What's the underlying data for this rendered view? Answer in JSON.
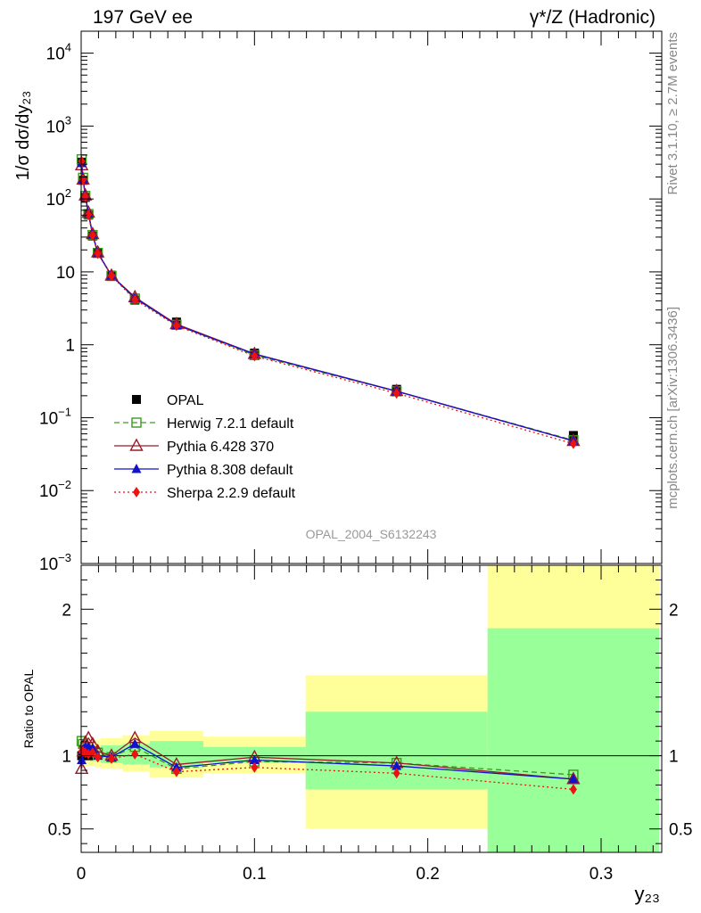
{
  "header": {
    "left": "197 GeV ee",
    "right": "γ*/Z (Hadronic)"
  },
  "side_labels": {
    "rivet": "Rivet 3.1.10, ≥ 2.7M events",
    "source": "mcplots.cern.ch [arXiv:1306.3436]"
  },
  "watermark": "OPAL_2004_S6132243",
  "colors": {
    "opal": "#000000",
    "herwig": "#3a9a1e",
    "pythia6": "#9b1b2a",
    "pythia8": "#1212cc",
    "sherpa": "#ee1111",
    "band_inner": "#99ff99",
    "band_outer": "#ffff99"
  },
  "chart_data": [
    {
      "type": "scatter",
      "panel": "main",
      "ylabel": "1/σ dσ/dy₂₃",
      "ylog": true,
      "xlim": [
        0,
        0.335
      ],
      "ylim": [
        0.001,
        20000
      ],
      "yticks": [
        {
          "v": 10000,
          "mant": "10",
          "exp": "4"
        },
        {
          "v": 1000,
          "mant": "10",
          "exp": "3"
        },
        {
          "v": 100,
          "mant": "10",
          "exp": "2"
        },
        {
          "v": 10,
          "mant": "10",
          "exp": ""
        },
        {
          "v": 1,
          "mant": "1",
          "exp": ""
        },
        {
          "v": 0.1,
          "mant": "10",
          "exp": "−1"
        },
        {
          "v": 0.01,
          "mant": "10",
          "exp": "−2"
        },
        {
          "v": 0.001,
          "mant": "10",
          "exp": "−3"
        }
      ],
      "legend_position": "middle-left",
      "x": [
        0.0003,
        0.0011,
        0.0024,
        0.0042,
        0.0066,
        0.0096,
        0.0175,
        0.031,
        0.055,
        0.1,
        0.182,
        0.284
      ],
      "series": [
        {
          "name": "OPAL",
          "key": "opal",
          "values": [
            320,
            180,
            105,
            60,
            31,
            18,
            9,
            4.1,
            2.05,
            0.77,
            0.245,
            0.057
          ]
        },
        {
          "name": "Herwig 7.2.1 default",
          "key": "herwig",
          "values": [
            350,
            195,
            110,
            62,
            32,
            18.2,
            8.8,
            4.3,
            1.88,
            0.72,
            0.23,
            0.049
          ]
        },
        {
          "name": "Pythia 6.428 370",
          "key": "pythia6",
          "values": [
            290,
            185,
            112,
            65,
            33,
            18.5,
            8.9,
            4.5,
            1.92,
            0.75,
            0.232,
            0.048
          ]
        },
        {
          "name": "Pythia 8.308 default",
          "key": "pythia8",
          "values": [
            310,
            188,
            110,
            63,
            32.5,
            18.1,
            8.9,
            4.4,
            1.87,
            0.745,
            0.23,
            0.048
          ]
        },
        {
          "name": "Sherpa 2.2.9 default",
          "key": "sherpa",
          "values": [
            330,
            185,
            107,
            61,
            31.5,
            17.8,
            8.8,
            4.15,
            1.83,
            0.7,
            0.216,
            0.044
          ]
        }
      ]
    },
    {
      "type": "scatter",
      "panel": "ratio",
      "ylabel": "Ratio to OPAL",
      "xlabel": "y₂₃",
      "xlim": [
        0,
        0.335
      ],
      "ylim": [
        0.34,
        2.3
      ],
      "yticks": [
        0.5,
        1,
        2
      ],
      "ytick_labels": [
        "0.5",
        "1",
        "2"
      ],
      "xticks": [
        0,
        0.1,
        0.2,
        0.3
      ],
      "xtick_labels": [
        "0",
        "0.1",
        "0.2",
        "0.3"
      ],
      "reference": 1,
      "bins": [
        {
          "x0": 0.0,
          "x1": 0.0007,
          "inner": [
            0.97,
            1.04
          ],
          "outer": [
            0.93,
            1.08
          ]
        },
        {
          "x0": 0.0007,
          "x1": 0.0016,
          "inner": [
            0.97,
            1.04
          ],
          "outer": [
            0.93,
            1.08
          ]
        },
        {
          "x0": 0.0016,
          "x1": 0.0033,
          "inner": [
            0.97,
            1.04
          ],
          "outer": [
            0.93,
            1.08
          ]
        },
        {
          "x0": 0.0033,
          "x1": 0.0052,
          "inner": [
            0.97,
            1.05
          ],
          "outer": [
            0.93,
            1.09
          ]
        },
        {
          "x0": 0.0052,
          "x1": 0.0081,
          "inner": [
            0.96,
            1.05
          ],
          "outer": [
            0.93,
            1.1
          ]
        },
        {
          "x0": 0.0081,
          "x1": 0.0112,
          "inner": [
            0.96,
            1.06
          ],
          "outer": [
            0.92,
            1.11
          ]
        },
        {
          "x0": 0.0112,
          "x1": 0.0238,
          "inner": [
            0.95,
            1.07
          ],
          "outer": [
            0.91,
            1.12
          ]
        },
        {
          "x0": 0.0238,
          "x1": 0.0395,
          "inner": [
            0.94,
            1.08
          ],
          "outer": [
            0.89,
            1.14
          ]
        },
        {
          "x0": 0.0395,
          "x1": 0.0705,
          "inner": [
            0.92,
            1.1
          ],
          "outer": [
            0.85,
            1.17
          ]
        },
        {
          "x0": 0.0705,
          "x1": 0.1295,
          "inner": [
            0.95,
            1.06
          ],
          "outer": [
            0.88,
            1.13
          ]
        },
        {
          "x0": 0.1295,
          "x1": 0.2345,
          "inner": [
            0.77,
            1.3
          ],
          "outer": [
            0.5,
            1.55
          ]
        },
        {
          "x0": 0.2345,
          "x1": 0.3335,
          "inner": [
            0.34,
            1.87
          ],
          "outer": [
            0.34,
            2.3
          ]
        }
      ],
      "series": [
        {
          "name": "OPAL",
          "key": "opal",
          "values": [
            1,
            1,
            1,
            1,
            1,
            1,
            1,
            1,
            1,
            1,
            1,
            1
          ]
        },
        {
          "name": "Herwig 7.2.1 default",
          "key": "herwig",
          "values": [
            1.1,
            1.08,
            1.06,
            1.04,
            1.03,
            1.02,
            0.99,
            1.06,
            0.91,
            0.96,
            0.95,
            0.87
          ]
        },
        {
          "name": "Pythia 6.428 370",
          "key": "pythia6",
          "values": [
            0.91,
            1.03,
            1.09,
            1.12,
            1.08,
            1.03,
            1.0,
            1.12,
            0.94,
            0.99,
            0.95,
            0.84
          ]
        },
        {
          "name": "Pythia 8.308 default",
          "key": "pythia8",
          "values": [
            0.97,
            1.04,
            1.06,
            1.06,
            1.05,
            1.0,
            0.99,
            1.08,
            0.92,
            0.97,
            0.93,
            0.84
          ]
        },
        {
          "name": "Sherpa 2.2.9 default",
          "key": "sherpa",
          "values": [
            1.03,
            1.03,
            1.02,
            1.01,
            1.02,
            0.99,
            0.98,
            1.01,
            0.89,
            0.92,
            0.88,
            0.77
          ]
        }
      ]
    }
  ]
}
